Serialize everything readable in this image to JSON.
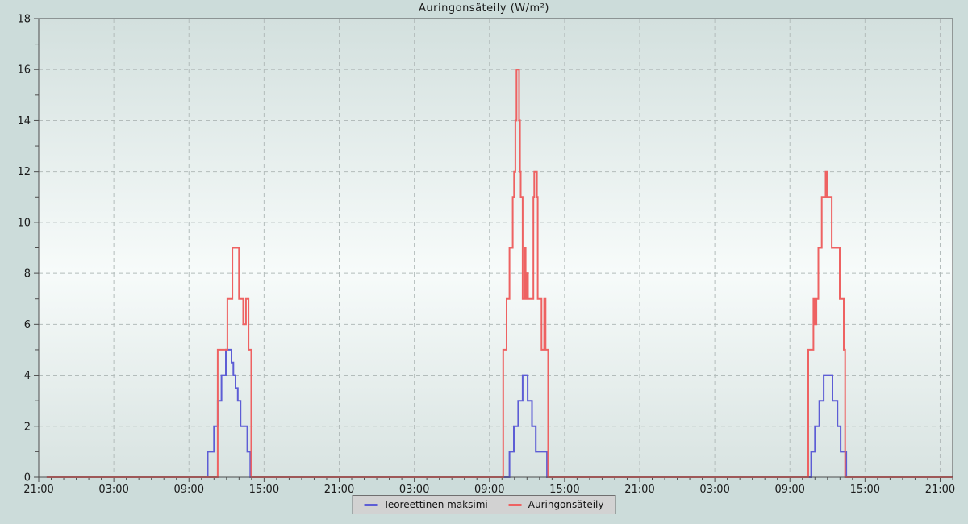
{
  "title": "Auringonsäteily (W/m²)",
  "legend": {
    "items": [
      {
        "label": "Teoreettinen maksimi",
        "color": "#5d5dd5"
      },
      {
        "label": "Auringonsäteily",
        "color": "#ee6262"
      }
    ]
  },
  "colors": {
    "page_bg": "#ccdcda",
    "plot_gradient_top": "#d3e0de",
    "plot_gradient_mid": "#f7fbfa",
    "plot_gradient_bottom": "#d8e3e1",
    "axis": "#4d4d4d",
    "grid": "#b3bcbb",
    "text": "#1a1a1a",
    "legend_bg": "#d2d2d2",
    "legend_border": "#6f6f6f"
  },
  "chart_data": {
    "type": "line",
    "line_style": "step",
    "title": "Auringonsäteily (W/m²)",
    "xlabel": "",
    "ylabel": "W/m²",
    "grid": true,
    "legend_position": "bottom-center",
    "x_axis": {
      "range_hours": [
        0,
        73
      ],
      "start_time": "21:00",
      "major_tick_hours": [
        0,
        6,
        12,
        18,
        24,
        30,
        36,
        42,
        48,
        54,
        60,
        66,
        72
      ],
      "major_tick_labels": [
        "21:00",
        "03:00",
        "09:00",
        "15:00",
        "21:00",
        "03:00",
        "09:00",
        "15:00",
        "21:00",
        "03:00",
        "09:00",
        "15:00",
        "21:00"
      ],
      "minor_tick_step_hours": 1,
      "gridline_hours": [
        6,
        12,
        18,
        24,
        30,
        36,
        42,
        48,
        54,
        60,
        66,
        72
      ]
    },
    "y_axis": {
      "range": [
        0,
        18
      ],
      "major_tick_step": 2,
      "minor_tick_step": 1,
      "tick_labels": [
        "0",
        "2",
        "4",
        "6",
        "8",
        "10",
        "12",
        "14",
        "16",
        "18"
      ],
      "gridline_values": [
        2,
        4,
        6,
        8,
        10,
        12,
        14,
        16
      ]
    },
    "series": [
      {
        "name": "Teoreettinen maksimi",
        "color": "#5d5dd5",
        "step_points": [
          [
            0.64,
            0
          ],
          [
            13.5,
            1
          ],
          [
            14.0,
            2
          ],
          [
            14.3,
            3
          ],
          [
            14.6,
            4
          ],
          [
            14.95,
            5
          ],
          [
            15.4,
            4.5
          ],
          [
            15.55,
            4
          ],
          [
            15.72,
            3.5
          ],
          [
            15.9,
            3
          ],
          [
            16.12,
            2
          ],
          [
            16.66,
            1
          ],
          [
            16.9,
            0
          ],
          [
            37.6,
            1
          ],
          [
            37.95,
            2
          ],
          [
            38.3,
            3
          ],
          [
            38.65,
            4
          ],
          [
            39.05,
            3
          ],
          [
            39.4,
            2
          ],
          [
            39.7,
            1
          ],
          [
            40.6,
            0
          ],
          [
            61.7,
            1
          ],
          [
            62.0,
            2
          ],
          [
            62.35,
            3
          ],
          [
            62.7,
            4
          ],
          [
            63.4,
            3
          ],
          [
            63.8,
            2
          ],
          [
            64.05,
            1
          ],
          [
            64.5,
            0
          ]
        ]
      },
      {
        "name": "Auringonsäteily",
        "color": "#ee6262",
        "step_points": [
          [
            0.64,
            0
          ],
          [
            14.3,
            5
          ],
          [
            15.07,
            7
          ],
          [
            15.47,
            9
          ],
          [
            16.0,
            7
          ],
          [
            16.33,
            6
          ],
          [
            16.55,
            7
          ],
          [
            16.76,
            5
          ],
          [
            16.98,
            0
          ],
          [
            37.1,
            5
          ],
          [
            37.37,
            7
          ],
          [
            37.6,
            9
          ],
          [
            37.86,
            11
          ],
          [
            37.97,
            12
          ],
          [
            38.07,
            14
          ],
          [
            38.16,
            16
          ],
          [
            38.37,
            14
          ],
          [
            38.44,
            12
          ],
          [
            38.5,
            11
          ],
          [
            38.65,
            7
          ],
          [
            38.8,
            9
          ],
          [
            38.89,
            7
          ],
          [
            38.95,
            8
          ],
          [
            39.08,
            7
          ],
          [
            39.51,
            11
          ],
          [
            39.58,
            12
          ],
          [
            39.79,
            11
          ],
          [
            39.86,
            7
          ],
          [
            40.16,
            5
          ],
          [
            40.37,
            7
          ],
          [
            40.48,
            5
          ],
          [
            40.69,
            0
          ],
          [
            61.47,
            5
          ],
          [
            61.88,
            7
          ],
          [
            62.01,
            6
          ],
          [
            62.12,
            7
          ],
          [
            62.27,
            9
          ],
          [
            62.54,
            11
          ],
          [
            62.85,
            12
          ],
          [
            62.97,
            11
          ],
          [
            63.34,
            9
          ],
          [
            63.98,
            7
          ],
          [
            64.3,
            5
          ],
          [
            64.41,
            0
          ]
        ]
      }
    ]
  }
}
